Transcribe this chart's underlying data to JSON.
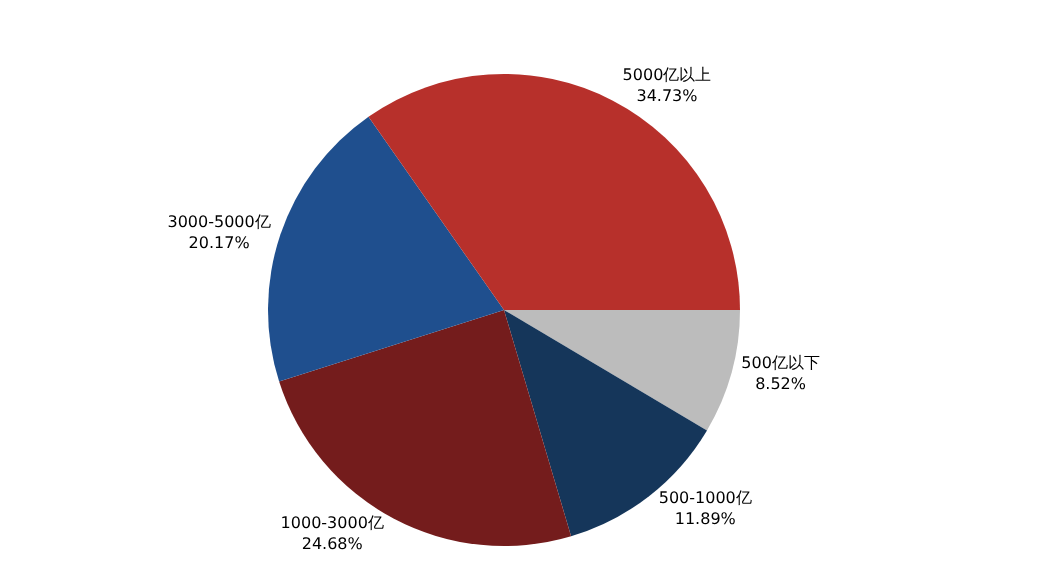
{
  "chart_data": {
    "type": "pie",
    "categories": [
      "500亿以下",
      "500-1000亿",
      "1000-3000亿",
      "3000-5000亿",
      "5000亿以上"
    ],
    "values": [
      8.52,
      11.89,
      24.68,
      20.17,
      34.73
    ],
    "value_labels": [
      "8.52%",
      "11.89%",
      "24.68%",
      "20.17%",
      "34.73%"
    ],
    "colors": [
      "#bcbcbc",
      "#15365a",
      "#741c1c",
      "#1f4f8e",
      "#b7302b"
    ],
    "legend": false
  }
}
